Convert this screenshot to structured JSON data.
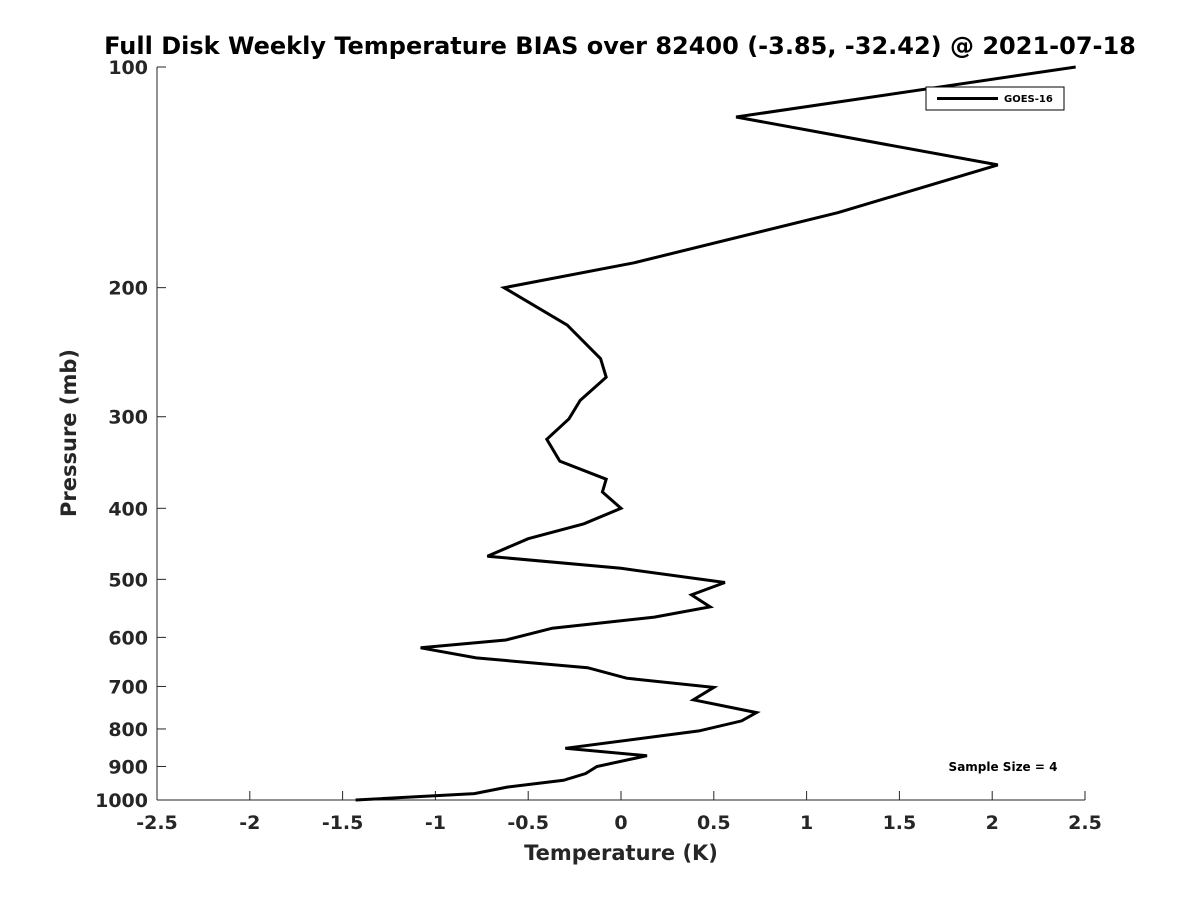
{
  "chart_data": {
    "type": "line",
    "title": "Full Disk Weekly Temperature BIAS over 82400 (-3.85, -32.42) @ 2021-07-18",
    "xlabel": "Temperature (K)",
    "ylabel": "Pressure (mb)",
    "xlim": [
      -2.5,
      2.5
    ],
    "ylim": [
      100,
      1000
    ],
    "y_scale": "log",
    "y_reversed": true,
    "x_ticks": [
      -2.5,
      -2,
      -1.5,
      -1,
      -0.5,
      0,
      0.5,
      1,
      1.5,
      2,
      2.5
    ],
    "x_tick_labels": [
      "-2.5",
      "-2",
      "-1.5",
      "-1",
      "-0.5",
      "0",
      "0.5",
      "1",
      "1.5",
      "2",
      "2.5"
    ],
    "y_ticks": [
      100,
      200,
      300,
      400,
      500,
      600,
      700,
      800,
      900,
      1000
    ],
    "y_tick_labels": [
      "100",
      "200",
      "300",
      "400",
      "500",
      "600",
      "700",
      "800",
      "900",
      "1000"
    ],
    "grid": false,
    "legend": {
      "placement": "top-right",
      "entries": [
        "GOES-16"
      ]
    },
    "annotation": "Sample Size = 4",
    "series": [
      {
        "name": "GOES-16",
        "color": "#000000",
        "points": [
          {
            "x": 2.45,
            "y": 100
          },
          {
            "x": 0.62,
            "y": 117
          },
          {
            "x": 2.03,
            "y": 136
          },
          {
            "x": 1.17,
            "y": 158
          },
          {
            "x": 0.07,
            "y": 185
          },
          {
            "x": -0.63,
            "y": 200
          },
          {
            "x": -0.29,
            "y": 225
          },
          {
            "x": -0.11,
            "y": 250
          },
          {
            "x": -0.08,
            "y": 265
          },
          {
            "x": -0.22,
            "y": 285
          },
          {
            "x": -0.28,
            "y": 302
          },
          {
            "x": -0.4,
            "y": 322
          },
          {
            "x": -0.33,
            "y": 345
          },
          {
            "x": -0.08,
            "y": 365
          },
          {
            "x": -0.1,
            "y": 380
          },
          {
            "x": 0.0,
            "y": 400
          },
          {
            "x": -0.2,
            "y": 420
          },
          {
            "x": -0.5,
            "y": 440
          },
          {
            "x": -0.72,
            "y": 465
          },
          {
            "x": 0.0,
            "y": 483
          },
          {
            "x": 0.56,
            "y": 505
          },
          {
            "x": 0.38,
            "y": 525
          },
          {
            "x": 0.48,
            "y": 545
          },
          {
            "x": 0.18,
            "y": 563
          },
          {
            "x": -0.37,
            "y": 583
          },
          {
            "x": -0.62,
            "y": 605
          },
          {
            "x": -1.08,
            "y": 620
          },
          {
            "x": -0.78,
            "y": 640
          },
          {
            "x": -0.18,
            "y": 660
          },
          {
            "x": 0.03,
            "y": 682
          },
          {
            "x": 0.5,
            "y": 702
          },
          {
            "x": 0.39,
            "y": 730
          },
          {
            "x": 0.73,
            "y": 760
          },
          {
            "x": 0.65,
            "y": 780
          },
          {
            "x": 0.42,
            "y": 805
          },
          {
            "x": -0.3,
            "y": 850
          },
          {
            "x": 0.14,
            "y": 870
          },
          {
            "x": -0.13,
            "y": 900
          },
          {
            "x": -0.19,
            "y": 920
          },
          {
            "x": -0.31,
            "y": 940
          },
          {
            "x": -0.61,
            "y": 960
          },
          {
            "x": -0.79,
            "y": 980
          },
          {
            "x": -1.43,
            "y": 1000
          }
        ]
      }
    ]
  }
}
